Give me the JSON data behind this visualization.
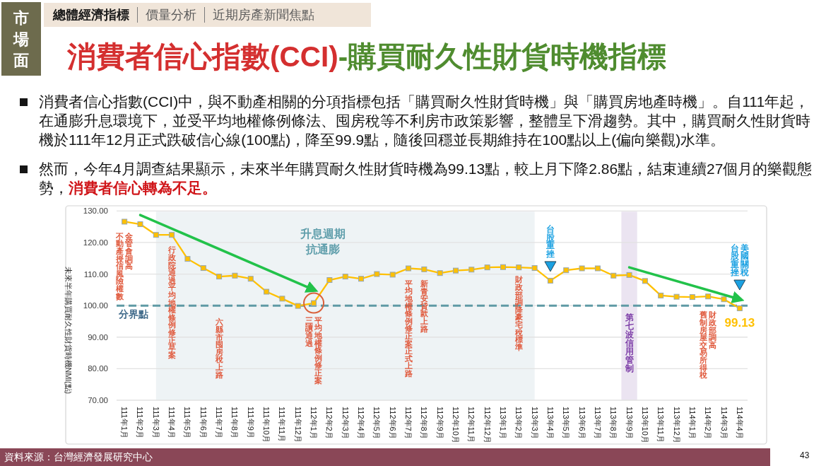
{
  "chart_data": {
    "type": "line",
    "title": "消費者信心指數(CCI)-購買耐久性財貨時機指標",
    "ylabel": "未來半年購買耐久性財貨時機NMI(點)",
    "categories": [
      "111年1月",
      "111年2月",
      "111年3月",
      "111年4月",
      "111年5月",
      "111年6月",
      "111年7月",
      "111年8月",
      "111年9月",
      "111年10月",
      "111年11月",
      "111年12月",
      "112年1月",
      "112年2月",
      "112年3月",
      "112年4月",
      "112年5月",
      "112年6月",
      "112年7月",
      "112年8月",
      "112年9月",
      "112年10月",
      "112年11月",
      "112年12月",
      "113年1月",
      "113年2月",
      "113年3月",
      "113年4月",
      "113年5月",
      "113年6月",
      "113年7月",
      "113年8月",
      "113年9月",
      "113年10月",
      "113年11月",
      "113年12月",
      "114年1月",
      "114年2月",
      "114年3月",
      "114年4月"
    ],
    "series": [
      {
        "color": "#ffc000",
        "values": [
          126.6,
          125.8,
          122.4,
          122.4,
          114.8,
          111.9,
          109.2,
          109.5,
          108.5,
          104.4,
          102.2,
          99.9,
          100.8,
          108.1,
          109.2,
          108.5,
          110.0,
          109.8,
          111.8,
          111.5,
          110.3,
          111.1,
          111.4,
          112.1,
          112.2,
          112.1,
          111.9,
          107.9,
          111.2,
          111.8,
          111.8,
          109.5,
          109.7,
          107.8,
          103.2,
          102.8,
          102.7,
          102.9,
          102.0,
          99.13
        ],
        "value_labels": [
          null,
          null,
          null,
          null,
          null,
          null,
          null,
          null,
          null,
          null,
          null,
          null,
          null,
          null,
          null,
          null,
          null,
          null,
          null,
          null,
          null,
          null,
          null,
          null,
          null,
          null,
          null,
          null,
          null,
          null,
          null,
          null,
          null,
          null,
          null,
          null,
          null,
          null,
          null,
          "99.13"
        ]
      },
      {
        "type": "line",
        "color": "#22c24a",
        "marker": "none",
        "x": [
          "111年2月",
          "112年1月"
        ],
        "values": [
          128.7,
          105.0
        ]
      },
      {
        "type": "line",
        "color": "#22c24a",
        "marker": "none",
        "x": [
          "113年9月",
          "114年4月"
        ],
        "values": [
          112.1,
          102.0
        ]
      }
    ],
    "marker": "square",
    "ylim": [
      70,
      130
    ],
    "yticks": [
      {
        "value": 70,
        "label": "70.00"
      },
      {
        "value": 80,
        "label": "80.00"
      },
      {
        "value": 90,
        "label": "90.00"
      },
      {
        "value": 100,
        "label": "100.00"
      },
      {
        "value": 110,
        "label": "110.00"
      },
      {
        "value": 120,
        "label": "120.00"
      },
      {
        "value": 130,
        "label": "130.00"
      }
    ],
    "grid": "y",
    "ref_lines": [
      {
        "axis": "y",
        "value": 100,
        "label": "分界點",
        "color": "#5f9aa5",
        "line_style": "dashed"
      }
    ],
    "bands": [
      {
        "axis": "x",
        "from": "111年3月",
        "to": "113年3月",
        "label": "升息週期抗通膨",
        "color": "#eef3f5"
      },
      {
        "axis": "x",
        "from": "113年9月",
        "to": "113年9月",
        "label": "第七波信用管制",
        "color": "#ebe4f1"
      }
    ],
    "annotations": [
      "金管會調高",
      "不動產授信風險權數",
      "行政院通過平均地權條例修正草案",
      "六縣市囤房稅上路",
      "平均地權條例修正案",
      "三讀通過",
      "平均地權條例修正案正式上路",
      "新青安貸款上路",
      "財政部調降豪宅稅標準",
      "台股重挫",
      "財政部調高",
      "舊制房屋交易所得稅",
      "美國關稅",
      "台股重挫",
      "市場面",
      "總體經濟指標",
      "價量分析",
      "近期房產新聞焦點",
      "消費者信心指數(CCI)中，與不動產相關的分項指標包括「購買耐久性財貨時機」與「購買房地產時機」。自111年起，在通膨升息環境下，並受平均地權條例條法、囤房稅等不利房市政策影響，整體呈下滑趨勢。其中，購買耐久性財貨時機於111年12月正式跌破信心線(100點)，降至99.9點，隨後回穩並長期維持在100點以上(偏向樂觀)水準。",
      "然而，今年4月調查結果顯示，未來半年購買耐久性財貨時機為99.13點，較上月下降2.86點，結束連續27個月的樂觀態勢，消費者信心轉為不足。",
      "資料來源：台灣經濟發展研究中心",
      "43"
    ]
  }
}
